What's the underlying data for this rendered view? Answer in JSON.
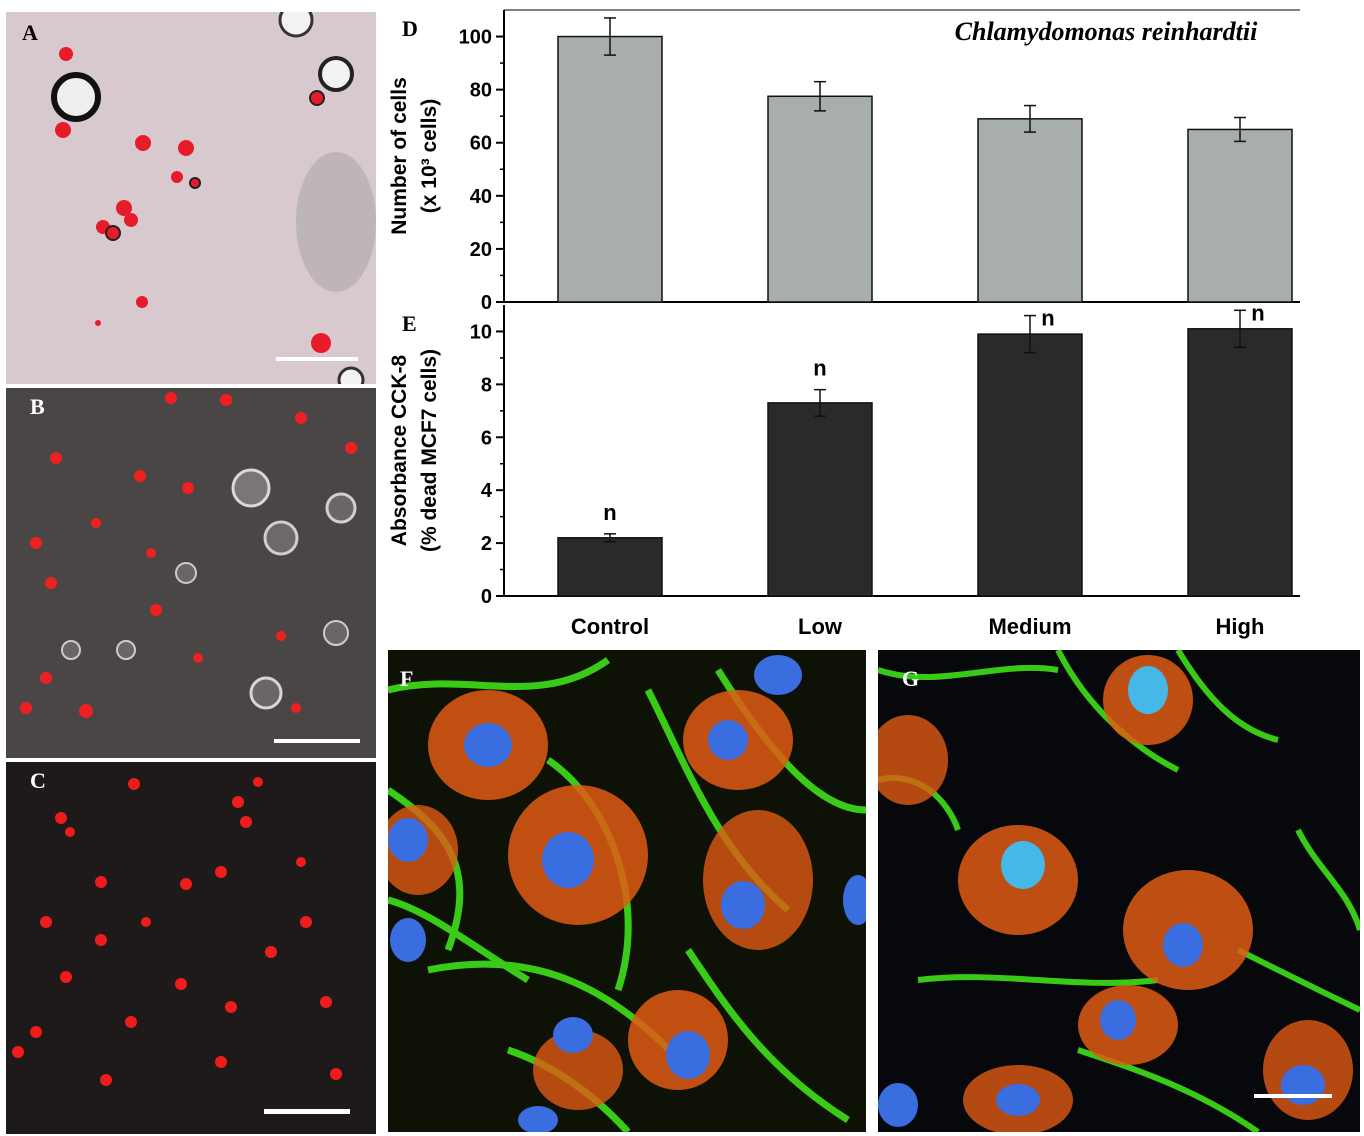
{
  "panels": {
    "A": {
      "label": "A"
    },
    "B": {
      "label": "B"
    },
    "C": {
      "label": "C"
    },
    "F": {
      "label": "F"
    },
    "G": {
      "label": "G"
    }
  },
  "chart_data": [
    {
      "panel_label": "D",
      "type": "bar",
      "title": "Chlamydomonas reinhardtii",
      "categories": [
        "Control",
        "Low",
        "Medium",
        "High"
      ],
      "values": [
        100,
        77.5,
        69,
        65
      ],
      "errors": [
        7,
        5.5,
        5,
        4.5
      ],
      "ylabel_line1": "Number of cells",
      "ylabel_line2": "(x 10³ cells)",
      "ylim": [
        0,
        110
      ],
      "yticks": [
        "0",
        "20",
        "40",
        "60",
        "80",
        "100"
      ],
      "bar_color": "#a8aeaa"
    },
    {
      "panel_label": "E",
      "type": "bar",
      "categories": [
        "Control",
        "Low",
        "Medium",
        "High"
      ],
      "values": [
        2.2,
        7.3,
        9.9,
        10.1
      ],
      "errors": [
        0.15,
        0.5,
        0.7,
        0.7
      ],
      "annotations": [
        "n",
        "n",
        "n",
        "n"
      ],
      "ylabel_line1": "Absorbance CCK-8",
      "ylabel_line2": "(% dead MCF7 cells)",
      "ylim": [
        0,
        11
      ],
      "yticks": [
        "0",
        "2",
        "4",
        "6",
        "8",
        "10"
      ],
      "bar_color": "#2a2a2a"
    }
  ]
}
